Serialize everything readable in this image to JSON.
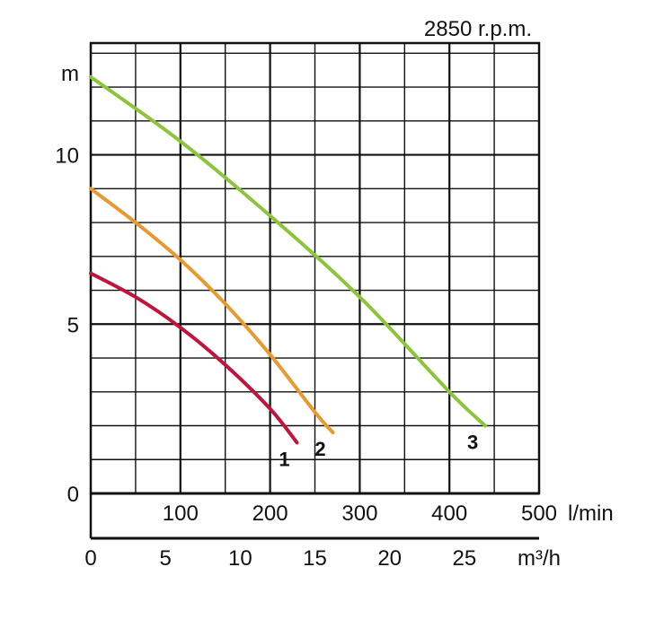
{
  "chart_data": {
    "type": "line",
    "annotation": "2850 r.p.m.",
    "y_unit": "m",
    "x_unit_primary": "l/min",
    "x_unit_secondary": "m³/h",
    "ylim": [
      0,
      13.3
    ],
    "y_ticks": [
      0,
      5,
      10
    ],
    "x_primary_ticks": [
      100,
      200,
      300,
      400,
      500
    ],
    "x_secondary_ticks": [
      0,
      5,
      10,
      15,
      20,
      25
    ],
    "xlim_lmin": [
      0,
      500
    ],
    "grid": true,
    "series": [
      {
        "name": "1",
        "color": "#c0143c",
        "x_lmin": [
          0,
          50,
          100,
          150,
          200,
          230
        ],
        "y_m": [
          6.5,
          5.8,
          4.9,
          3.8,
          2.5,
          1.5
        ]
      },
      {
        "name": "2",
        "color": "#e89a30",
        "x_lmin": [
          0,
          50,
          100,
          150,
          200,
          250,
          270
        ],
        "y_m": [
          9.0,
          8.0,
          6.9,
          5.6,
          4.1,
          2.4,
          1.8
        ]
      },
      {
        "name": "3",
        "color": "#8cc43c",
        "x_lmin": [
          0,
          100,
          200,
          300,
          400,
          440
        ],
        "y_m": [
          12.3,
          10.4,
          8.2,
          5.8,
          3.0,
          2.0
        ]
      }
    ]
  }
}
